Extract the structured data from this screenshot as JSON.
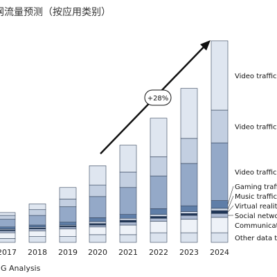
{
  "chart_data": {
    "type": "bar",
    "stacked": true,
    "title": "网流量预测（按应用类别）",
    "categories": [
      "2017",
      "2018",
      "2019",
      "2020",
      "2021",
      "2022",
      "2023",
      "2024"
    ],
    "ylim": [
      0,
      100
    ],
    "grid": false,
    "legend_position": "right",
    "series": [
      {
        "name": "Other data tr",
        "values": [
          2,
          3,
          3,
          4,
          4,
          5,
          5,
          5
        ],
        "color": "#dbe3ee"
      },
      {
        "name": "Communicati",
        "values": [
          3,
          3,
          4,
          4,
          5,
          6,
          7,
          8
        ],
        "color": "#eef2f8"
      },
      {
        "name": "Social networ",
        "values": [
          1,
          1,
          1,
          1,
          1.5,
          1.5,
          2,
          2
        ],
        "color": "#aebbd3"
      },
      {
        "name": "Virtual reality",
        "values": [
          0.5,
          0.5,
          0.5,
          0.8,
          1,
          1,
          1,
          1.5
        ],
        "color": "#1f3556"
      },
      {
        "name": "Music traffic",
        "values": [
          0.5,
          0.5,
          0.5,
          1,
          1,
          1,
          1,
          1.2
        ],
        "color": "#cfd8e6"
      },
      {
        "name": "Gaming traffi",
        "values": [
          1,
          1,
          1.5,
          2,
          2,
          3,
          3,
          4
        ],
        "color": "#5f7ea8"
      },
      {
        "name": "Video traffic -",
        "values": [
          4,
          5,
          8,
          11,
          14,
          17,
          22,
          30
        ],
        "color": "#94a9c8"
      },
      {
        "name": "Video traffic -",
        "values": [
          2,
          3,
          4,
          6,
          8,
          10,
          13,
          17
        ],
        "color": "#c3cfe1"
      },
      {
        "name": "Video traffic -",
        "values": [
          1.5,
          3,
          6,
          10,
          14,
          20,
          26,
          36
        ],
        "color": "#dfe6f0"
      }
    ],
    "annotations": [
      {
        "text": "+28%"
      }
    ],
    "source": "…G Analysis"
  }
}
